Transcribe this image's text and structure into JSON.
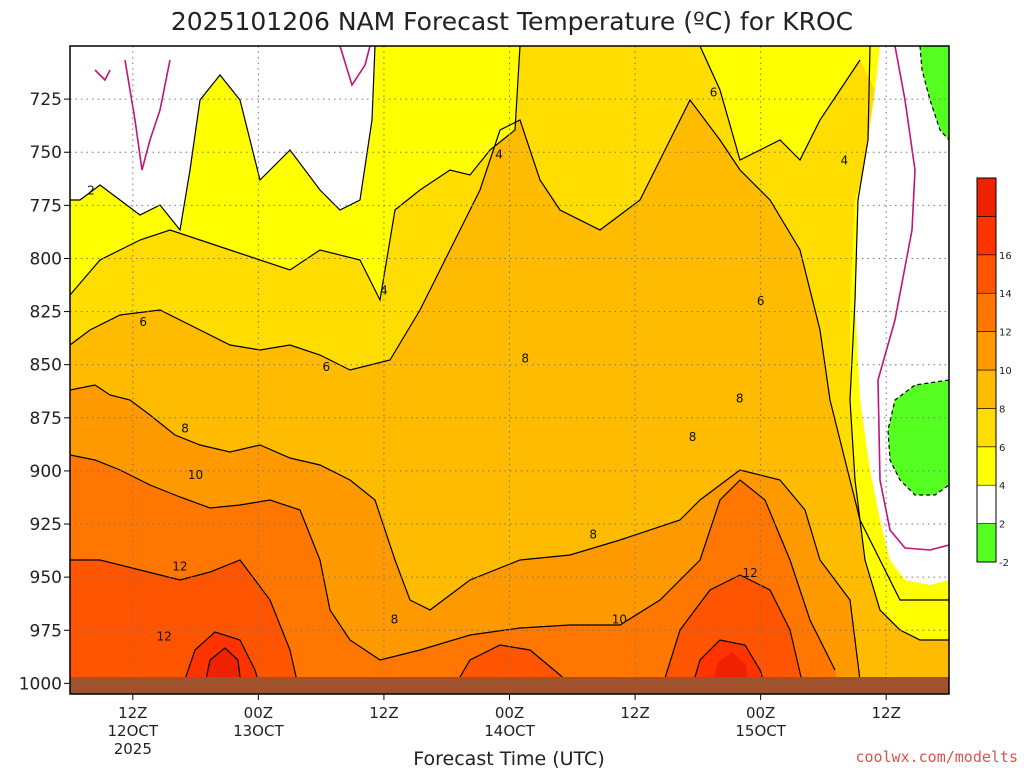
{
  "chart_data": {
    "type": "heatmap",
    "title": "2025101206 NAM Forecast Temperature (ºC) for KROC",
    "xlabel": "Forecast Time (UTC)",
    "credit": "coolwx.com/modelts",
    "y_ticks": [
      "725",
      "750",
      "775",
      "800",
      "825",
      "850",
      "875",
      "900",
      "925",
      "950",
      "975",
      "1000"
    ],
    "y_values": [
      725,
      750,
      775,
      800,
      825,
      850,
      875,
      900,
      925,
      950,
      975,
      1000
    ],
    "x_ticks": [
      {
        "hour": 12,
        "line1": "12Z",
        "line2": "12OCT",
        "line3": "2025"
      },
      {
        "hour": 24,
        "line1": "00Z",
        "line2": "13OCT",
        "line3": ""
      },
      {
        "hour": 36,
        "line1": "12Z",
        "line2": "",
        "line3": ""
      },
      {
        "hour": 48,
        "line1": "00Z",
        "line2": "14OCT",
        "line3": ""
      },
      {
        "hour": 60,
        "line1": "12Z",
        "line2": "",
        "line3": ""
      },
      {
        "hour": 72,
        "line1": "00Z",
        "line2": "15OCT",
        "line3": ""
      },
      {
        "hour": 84,
        "line1": "12Z",
        "line2": "",
        "line3": ""
      }
    ],
    "x_range_hours": [
      6,
      90
    ],
    "y_range_hpa": [
      700,
      1005
    ],
    "colorbar": {
      "levels": [
        -2,
        2,
        4,
        6,
        8,
        10,
        12,
        14,
        16,
        18
      ],
      "labels": [
        "16",
        "14",
        "12",
        "10",
        "8",
        "6",
        "4",
        "2",
        "-2"
      ],
      "colors": [
        "#55ff22",
        "#ffffff",
        "#ffff00",
        "#ffdd00",
        "#ffbb00",
        "#ff9900",
        "#ff7700",
        "#ff5500",
        "#ff3300",
        "#ee2200"
      ]
    },
    "contour_labels": [
      {
        "text": "2",
        "x_hour": 8.0,
        "p": 768
      },
      {
        "text": "4",
        "x_hour": 47.0,
        "p": 751
      },
      {
        "text": "4",
        "x_hour": 36.0,
        "p": 815
      },
      {
        "text": "4",
        "x_hour": 80.0,
        "p": 754
      },
      {
        "text": "6",
        "x_hour": 13.0,
        "p": 830
      },
      {
        "text": "6",
        "x_hour": 30.5,
        "p": 851
      },
      {
        "text": "6",
        "x_hour": 67.5,
        "p": 722
      },
      {
        "text": "6",
        "x_hour": 72.0,
        "p": 820
      },
      {
        "text": "8",
        "x_hour": 17.0,
        "p": 880
      },
      {
        "text": "8",
        "x_hour": 49.5,
        "p": 847
      },
      {
        "text": "8",
        "x_hour": 70.0,
        "p": 866
      },
      {
        "text": "8",
        "x_hour": 65.5,
        "p": 884
      },
      {
        "text": "8",
        "x_hour": 56.0,
        "p": 930
      },
      {
        "text": "8",
        "x_hour": 37.0,
        "p": 970
      },
      {
        "text": "10",
        "x_hour": 18.0,
        "p": 902
      },
      {
        "text": "10",
        "x_hour": 58.5,
        "p": 970
      },
      {
        "text": "12",
        "x_hour": 16.5,
        "p": 945
      },
      {
        "text": "12",
        "x_hour": 15.0,
        "p": 978
      },
      {
        "text": "12",
        "x_hour": 71.0,
        "p": 948
      }
    ]
  }
}
